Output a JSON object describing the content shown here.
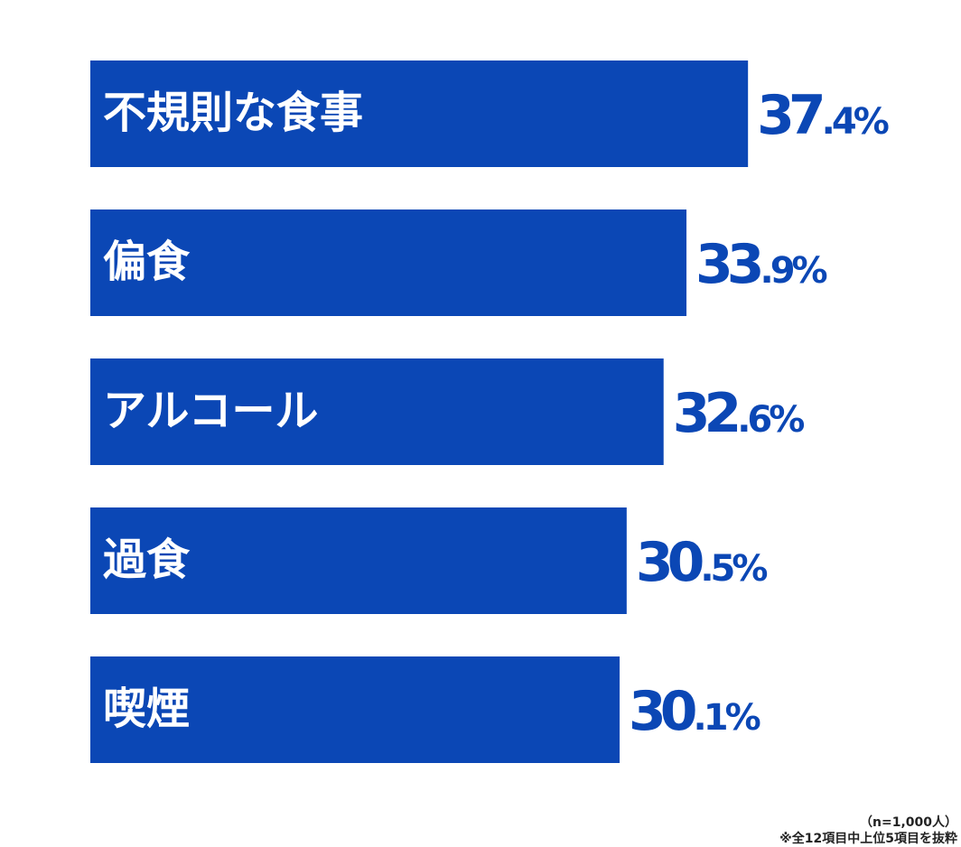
{
  "chart_data": {
    "type": "bar",
    "orientation": "horizontal",
    "categories": [
      "不規則な食事",
      "偏食",
      "アルコール",
      "過食",
      "喫煙"
    ],
    "values": [
      37.4,
      33.9,
      32.6,
      30.5,
      30.1
    ],
    "value_labels": [
      "37.4%",
      "33.9%",
      "32.6%",
      "30.5%",
      "30.1%"
    ],
    "unit": "%",
    "xlim": [
      0,
      40
    ],
    "grid": false,
    "legend": "none",
    "bar_color": "#0b47b5",
    "label_color": "#ffffff",
    "value_color": "#0b47b5"
  },
  "notes": {
    "sample": "（n=1,000人）",
    "source": "※全12項目中上位5項目を抜粋"
  }
}
